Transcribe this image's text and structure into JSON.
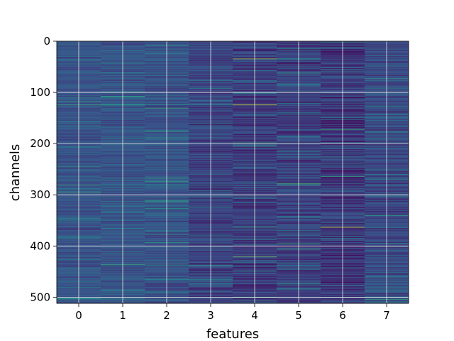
{
  "chart_data": {
    "type": "heatmap",
    "title": "",
    "xlabel": "features",
    "ylabel": "channels",
    "x_categories": [
      "0",
      "1",
      "2",
      "3",
      "4",
      "5",
      "6",
      "7"
    ],
    "xticks": [
      0,
      1,
      2,
      3,
      4,
      5,
      6,
      7
    ],
    "yticks": [
      0,
      100,
      200,
      300,
      400,
      500
    ],
    "xlim": [
      -0.5,
      7.5
    ],
    "ylim": [
      0,
      512
    ],
    "y_inverted": true,
    "n_rows": 512,
    "n_cols": 8,
    "grid": true,
    "colormap": "viridis",
    "background_color": "#3b3f8a",
    "highlights": [
      {
        "feature": 0,
        "channel": 124,
        "value": 0.62
      },
      {
        "feature": 1,
        "channel": 124,
        "value": 0.55
      },
      {
        "feature": 2,
        "channel": 124,
        "value": 0.5
      },
      {
        "feature": 3,
        "channel": 124,
        "value": 0.5
      },
      {
        "feature": 4,
        "channel": 124,
        "value": 0.95
      },
      {
        "feature": 4,
        "channel": 34,
        "value": 0.85
      },
      {
        "feature": 4,
        "channel": 204,
        "value": 0.6
      },
      {
        "feature": 4,
        "channel": 420,
        "value": 0.8
      },
      {
        "feature": 5,
        "channel": 278,
        "value": 0.65
      },
      {
        "feature": 5,
        "channel": 280,
        "value": 0.6
      },
      {
        "feature": 6,
        "channel": 172,
        "value": 0.6
      },
      {
        "feature": 6,
        "channel": 363,
        "value": 0.95
      },
      {
        "feature": 7,
        "channel": 340,
        "value": 0.55
      },
      {
        "feature": 7,
        "channel": 400,
        "value": 0.55
      },
      {
        "feature": 0,
        "channel": 280,
        "value": 0.6
      },
      {
        "feature": 1,
        "channel": 280,
        "value": 0.5
      },
      {
        "feature": 2,
        "channel": 280,
        "value": 0.5
      },
      {
        "feature": 3,
        "channel": 280,
        "value": 0.5
      },
      {
        "feature": 0,
        "channel": 400,
        "value": 0.45
      },
      {
        "feature": 5,
        "channel": 62,
        "value": 0.55
      },
      {
        "feature": 5,
        "channel": 85,
        "value": 0.5
      },
      {
        "feature": 7,
        "channel": 72,
        "value": 0.55
      },
      {
        "feature": 3,
        "channel": 437,
        "value": 0.55
      },
      {
        "feature": 6,
        "channel": 12,
        "value": 0.45
      }
    ]
  }
}
